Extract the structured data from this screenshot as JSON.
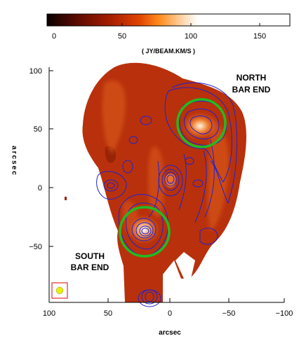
{
  "colorbar": {
    "ticks": [
      "0",
      "50",
      "100",
      "150"
    ],
    "unit": "( JY/BEAM.KM/S )",
    "colors": [
      "#0a0000",
      "#5a0a00",
      "#a61d00",
      "#e04300",
      "#ff8a1a",
      "#ffc890",
      "#ffffff"
    ]
  },
  "map": {
    "y_ticks": [
      "100",
      "50",
      "0",
      "−50"
    ],
    "x_ticks": [
      "100",
      "50",
      "0",
      "−50",
      "−100"
    ],
    "xlabel": "arcsec",
    "ylabel": "arcsec",
    "x_range": [
      100,
      -100
    ],
    "y_range": [
      -100,
      100
    ],
    "annotations": {
      "north_line1": "NORTH",
      "north_line2": "BAR END",
      "south_line1": "SOUTH",
      "south_line2": "BAR END"
    },
    "circle_color": "#22bb22",
    "contour_color": "#2222cc",
    "beam_color": "#e8f000",
    "beam_box_color": "#e03030"
  }
}
